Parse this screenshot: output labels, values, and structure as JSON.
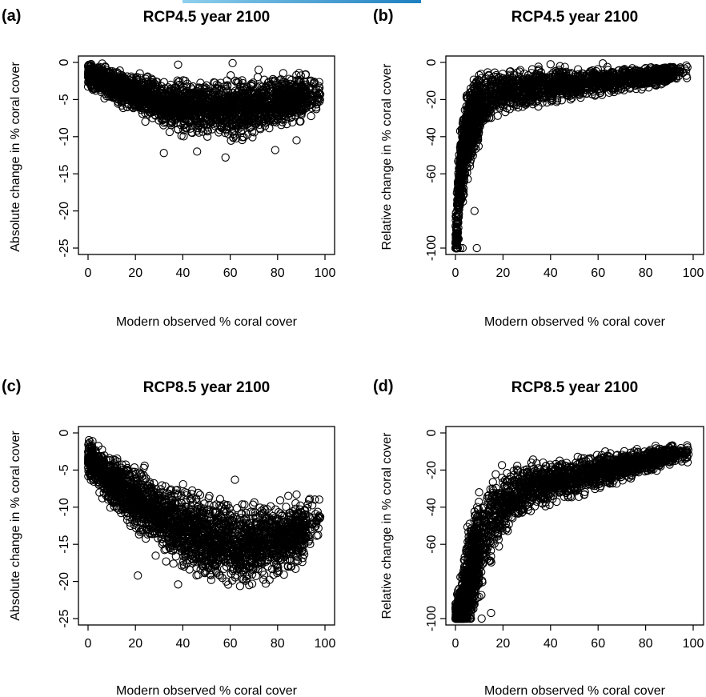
{
  "chart_data": [
    {
      "panel": "(a)",
      "type": "scatter",
      "title": "RCP4.5 year 2100",
      "xlabel": "Modern observed % coral cover",
      "ylabel": "Absolute change in % coral cover",
      "xlim": [
        0,
        100
      ],
      "ylim": [
        -25,
        0
      ],
      "xticks": [
        "0",
        "20",
        "40",
        "60",
        "80",
        "100"
      ],
      "yticks": [
        "0",
        "-5",
        "-10",
        "-15",
        "-20",
        "-25"
      ],
      "trend": [
        [
          0,
          -1.5
        ],
        [
          10,
          -3.0
        ],
        [
          20,
          -4.2
        ],
        [
          30,
          -5.3
        ],
        [
          40,
          -5.9
        ],
        [
          50,
          -6.2
        ],
        [
          60,
          -6.2
        ],
        [
          70,
          -5.9
        ],
        [
          80,
          -5.3
        ],
        [
          90,
          -4.5
        ],
        [
          98,
          -4.2
        ]
      ],
      "spread": [
        [
          0,
          0.9
        ],
        [
          20,
          1.4
        ],
        [
          40,
          1.9
        ],
        [
          60,
          2.2
        ],
        [
          80,
          1.8
        ],
        [
          100,
          1.5
        ]
      ],
      "outliers": [
        [
          61,
          -0.1
        ],
        [
          38,
          -0.3
        ],
        [
          98,
          -4.3
        ],
        [
          72,
          -1.0
        ],
        [
          88,
          -10.5
        ],
        [
          32,
          -12.2
        ],
        [
          58,
          -12.8
        ],
        [
          79,
          -11.8
        ],
        [
          46,
          -12.0
        ]
      ]
    },
    {
      "panel": "(b)",
      "type": "scatter",
      "title": "RCP4.5 year 2100",
      "xlabel": "Modern observed % coral cover",
      "ylabel": "Relative change in % coral cover",
      "xlim": [
        0,
        100
      ],
      "ylim": [
        -100,
        0
      ],
      "xticks": [
        "0",
        "20",
        "40",
        "60",
        "80",
        "100"
      ],
      "yticks": [
        "0",
        "-20",
        "-40",
        "-60",
        "-100"
      ],
      "trend": [
        [
          0.5,
          -96
        ],
        [
          1,
          -80
        ],
        [
          2,
          -60
        ],
        [
          4,
          -45
        ],
        [
          6,
          -35
        ],
        [
          10,
          -25
        ],
        [
          15,
          -19
        ],
        [
          20,
          -16
        ],
        [
          30,
          -14
        ],
        [
          40,
          -12.5
        ],
        [
          60,
          -10.5
        ],
        [
          80,
          -8
        ],
        [
          95,
          -5
        ]
      ],
      "spread": [
        [
          0,
          12
        ],
        [
          5,
          12
        ],
        [
          10,
          9
        ],
        [
          20,
          6
        ],
        [
          40,
          5
        ],
        [
          60,
          4
        ],
        [
          80,
          3
        ],
        [
          100,
          2
        ]
      ],
      "outliers": [
        [
          62,
          -0.5
        ],
        [
          40,
          -1
        ],
        [
          97,
          -4.5
        ],
        [
          9,
          -100
        ],
        [
          2,
          -100
        ],
        [
          1,
          -100
        ],
        [
          3,
          -100
        ],
        [
          8,
          -80
        ]
      ]
    },
    {
      "panel": "(c)",
      "type": "scatter",
      "title": "RCP8.5 year 2100",
      "xlabel": "Modern observed % coral cover",
      "ylabel": "Absolute change in % coral cover",
      "xlim": [
        0,
        100
      ],
      "ylim": [
        -25,
        0
      ],
      "xticks": [
        "0",
        "20",
        "40",
        "60",
        "80",
        "100"
      ],
      "yticks": [
        "0",
        "-5",
        "-10",
        "-15",
        "-20",
        "-25"
      ],
      "trend": [
        [
          0,
          -3.5
        ],
        [
          10,
          -6.5
        ],
        [
          20,
          -9.0
        ],
        [
          30,
          -11.0
        ],
        [
          40,
          -12.8
        ],
        [
          50,
          -14.0
        ],
        [
          60,
          -14.8
        ],
        [
          70,
          -15.0
        ],
        [
          80,
          -14.5
        ],
        [
          90,
          -13.5
        ],
        [
          98,
          -11.5
        ]
      ],
      "spread": [
        [
          0,
          1.3
        ],
        [
          20,
          2.4
        ],
        [
          40,
          3.0
        ],
        [
          60,
          3.0
        ],
        [
          80,
          2.6
        ],
        [
          100,
          2.2
        ]
      ],
      "outliers": [
        [
          98,
          -11.3
        ],
        [
          62,
          -6.3
        ],
        [
          88,
          -8.3
        ],
        [
          38,
          -20.4
        ],
        [
          68,
          -20.5
        ],
        [
          21,
          -19.2
        ],
        [
          75,
          -20.3
        ],
        [
          52,
          -19.8
        ]
      ]
    },
    {
      "panel": "(d)",
      "type": "scatter",
      "title": "RCP8.5 year 2100",
      "xlabel": "Modern observed % coral cover",
      "ylabel": "Relative change in % coral cover",
      "xlim": [
        0,
        100
      ],
      "ylim": [
        -100,
        0
      ],
      "xticks": [
        "0",
        "20",
        "40",
        "60",
        "80",
        "100"
      ],
      "yticks": [
        "0",
        "-20",
        "-40",
        "-60",
        "-100"
      ],
      "trend": [
        [
          1,
          -99
        ],
        [
          3,
          -93
        ],
        [
          5,
          -83
        ],
        [
          8,
          -70
        ],
        [
          12,
          -55
        ],
        [
          16,
          -45
        ],
        [
          20,
          -38
        ],
        [
          25,
          -33
        ],
        [
          30,
          -30
        ],
        [
          40,
          -27
        ],
        [
          50,
          -24
        ],
        [
          60,
          -21
        ],
        [
          70,
          -18
        ],
        [
          80,
          -15
        ],
        [
          90,
          -12
        ],
        [
          95,
          -11
        ]
      ],
      "spread": [
        [
          0,
          5
        ],
        [
          5,
          15
        ],
        [
          10,
          15
        ],
        [
          20,
          10
        ],
        [
          40,
          6
        ],
        [
          60,
          5
        ],
        [
          80,
          3.5
        ],
        [
          100,
          2.5
        ]
      ],
      "outliers": [
        [
          98,
          -11.5
        ],
        [
          63,
          -10
        ],
        [
          88,
          -9
        ],
        [
          1,
          -100
        ],
        [
          3,
          -100
        ],
        [
          6,
          -100
        ],
        [
          11,
          -100
        ],
        [
          15,
          -97
        ]
      ]
    }
  ]
}
